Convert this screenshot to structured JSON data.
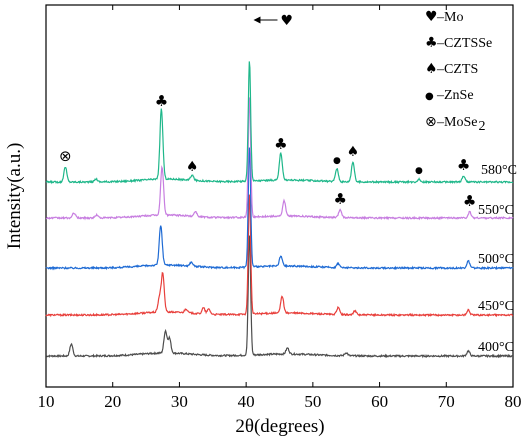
{
  "chart_data": {
    "type": "line",
    "xlabel": "2θ(degrees)",
    "ylabel": "Intensity(a.u.)",
    "xlim": [
      10,
      80
    ],
    "xticks": [
      "10",
      "20",
      "30",
      "40",
      "50",
      "60",
      "70",
      "80"
    ],
    "legend_placement": "top-right",
    "legend": [
      {
        "symbol": "♥",
        "label": "–Mo",
        "sub": ""
      },
      {
        "symbol": "♣",
        "label": "–CZTSSe",
        "sub": ""
      },
      {
        "symbol": "♠",
        "label": "–CZTS",
        "sub": ""
      },
      {
        "symbol": "●",
        "label": "–ZnSe",
        "sub": ""
      },
      {
        "symbol": "⊗",
        "label": "–MoSe",
        "sub": "2"
      }
    ],
    "mo_arrow": {
      "x": 40.5,
      "symbol": "♥"
    },
    "series": [
      {
        "name": "400°C",
        "color": "#4d4d4d",
        "offset": 0,
        "peaks": [
          [
            13.8,
            12
          ],
          [
            27.9,
            22
          ],
          [
            28.5,
            15
          ],
          [
            40.5,
            120
          ],
          [
            46.2,
            6
          ],
          [
            55.0,
            3
          ],
          [
            73.3,
            5
          ]
        ]
      },
      {
        "name": "450°C",
        "color": "#e8403c",
        "offset": 1,
        "peaks": [
          [
            27.0,
            14
          ],
          [
            27.5,
            38
          ],
          [
            31.0,
            4
          ],
          [
            33.6,
            6
          ],
          [
            34.4,
            5
          ],
          [
            40.5,
            120
          ],
          [
            45.4,
            17
          ],
          [
            53.8,
            7
          ],
          [
            56.3,
            4
          ],
          [
            73.3,
            5
          ]
        ]
      },
      {
        "name": "500°C",
        "color": "#1f6bd4",
        "offset": 2,
        "peaks": [
          [
            27.2,
            40
          ],
          [
            31.8,
            4
          ],
          [
            40.5,
            120
          ],
          [
            45.2,
            10
          ],
          [
            53.8,
            4
          ],
          [
            73.3,
            7
          ]
        ]
      },
      {
        "name": "550°C",
        "color": "#c77ee0",
        "offset": 3,
        "peaks": [
          [
            14.2,
            5
          ],
          [
            17.6,
            3
          ],
          [
            27.4,
            48
          ],
          [
            32.4,
            5
          ],
          [
            40.5,
            120
          ],
          [
            45.7,
            15
          ],
          [
            54.1,
            8
          ],
          [
            73.5,
            6
          ]
        ]
      },
      {
        "name": "580°C",
        "color": "#1fb78a",
        "offset": 4,
        "peaks": [
          [
            12.9,
            15
          ],
          [
            17.5,
            3
          ],
          [
            27.3,
            70
          ],
          [
            31.9,
            5
          ],
          [
            40.5,
            120
          ],
          [
            45.2,
            27
          ],
          [
            53.6,
            13
          ],
          [
            56.0,
            20
          ],
          [
            65.9,
            3
          ],
          [
            72.6,
            6
          ]
        ]
      }
    ],
    "annotations": [
      {
        "series": "580°C",
        "symbol": "⊗",
        "x": 12.9
      },
      {
        "series": "580°C",
        "symbol": "♣",
        "x": 27.3
      },
      {
        "series": "580°C",
        "symbol": "♠",
        "x": 31.9
      },
      {
        "series": "580°C",
        "symbol": "♣",
        "x": 45.2
      },
      {
        "series": "580°C",
        "symbol": "●",
        "x": 53.6
      },
      {
        "series": "580°C",
        "symbol": "♠",
        "x": 56.0
      },
      {
        "series": "580°C",
        "symbol": "●",
        "x": 65.9
      },
      {
        "series": "580°C",
        "symbol": "♣",
        "x": 72.6
      },
      {
        "series": "550°C",
        "symbol": "♣",
        "x": 54.1
      },
      {
        "series": "550°C",
        "symbol": "♣",
        "x": 73.5
      }
    ]
  }
}
